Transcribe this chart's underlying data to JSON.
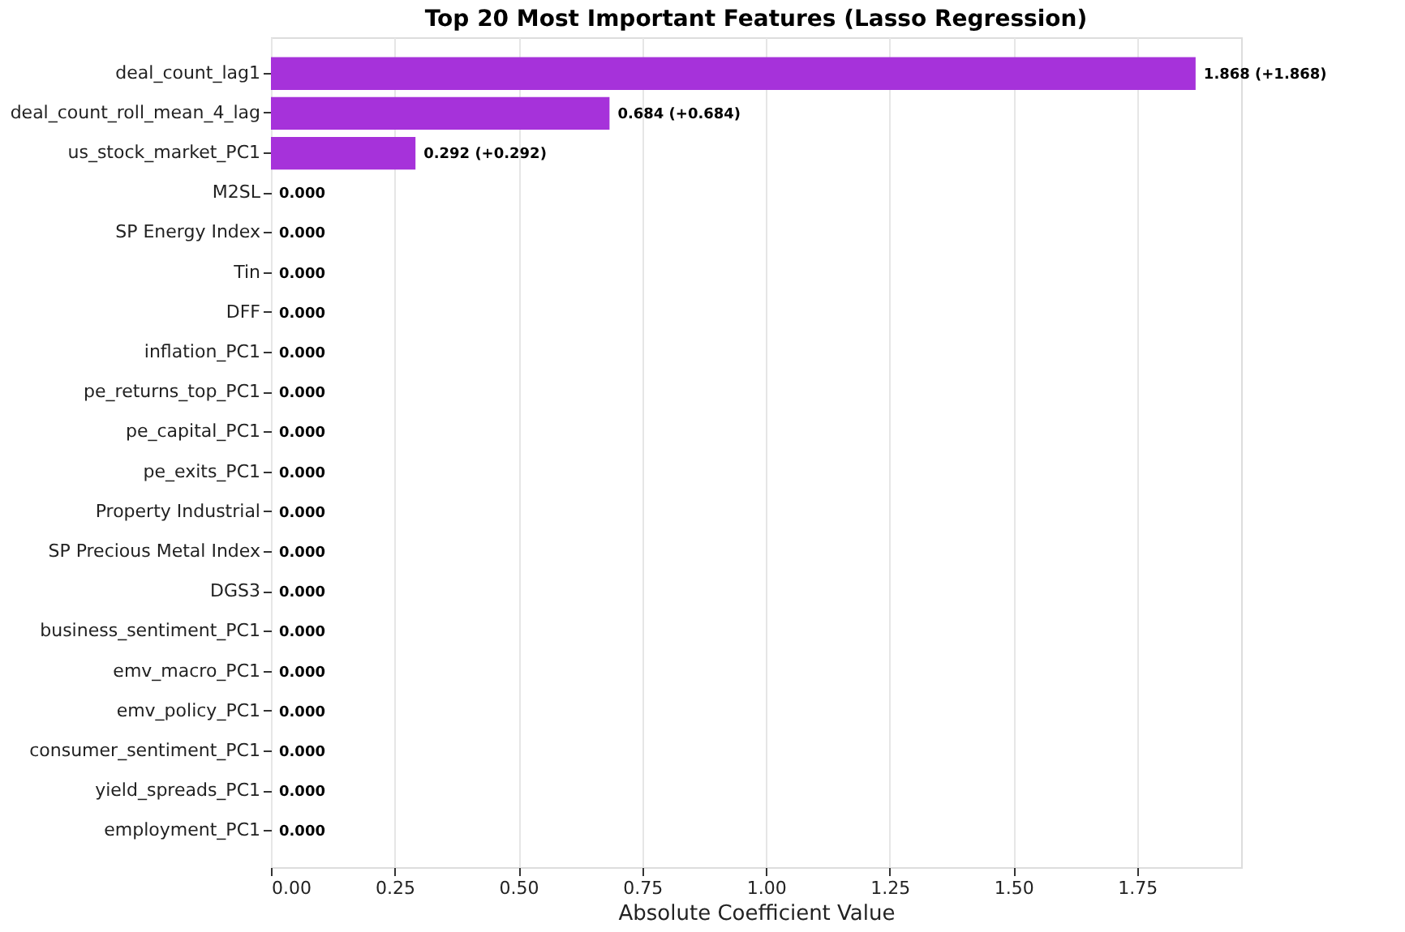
{
  "chart_data": {
    "type": "bar",
    "orientation": "horizontal",
    "title": "Top 20 Most Important Features (Lasso Regression)",
    "xlabel": "Absolute Coefficient Value",
    "categories": [
      "deal_count_lag1",
      "deal_count_roll_mean_4_lag",
      "us_stock_market_PC1",
      "M2SL",
      "SP Energy Index",
      "Tin",
      "DFF",
      "inflation_PC1",
      "pe_returns_top_PC1",
      "pe_capital_PC1",
      "pe_exits_PC1",
      "Property Industrial",
      "SP Precious Metal Index",
      "DGS3",
      "business_sentiment_PC1",
      "emv_macro_PC1",
      "emv_policy_PC1",
      "consumer_sentiment_PC1",
      "yield_spreads_PC1",
      "employment_PC1"
    ],
    "values": [
      1.868,
      0.684,
      0.292,
      0,
      0,
      0,
      0,
      0,
      0,
      0,
      0,
      0,
      0,
      0,
      0,
      0,
      0,
      0,
      0,
      0
    ],
    "value_labels": [
      "1.868 (+1.868)",
      "0.684 (+0.684)",
      "0.292 (+0.292)",
      "0.000",
      "0.000",
      "0.000",
      "0.000",
      "0.000",
      "0.000",
      "0.000",
      "0.000",
      "0.000",
      "0.000",
      "0.000",
      "0.000",
      "0.000",
      "0.000",
      "0.000",
      "0.000",
      "0.000"
    ],
    "color": "#a632da",
    "xlim": [
      0,
      1.96
    ],
    "xticks": [
      {
        "value": 0,
        "label": "0.00"
      },
      {
        "value": 0.25,
        "label": "0.25"
      },
      {
        "value": 0.5,
        "label": "0.50"
      },
      {
        "value": 0.75,
        "label": "0.75"
      },
      {
        "value": 1,
        "label": "1.00"
      },
      {
        "value": 1.25,
        "label": "1.25"
      },
      {
        "value": 1.5,
        "label": "1.50"
      },
      {
        "value": 1.75,
        "label": "1.75"
      }
    ],
    "grid": "x"
  }
}
